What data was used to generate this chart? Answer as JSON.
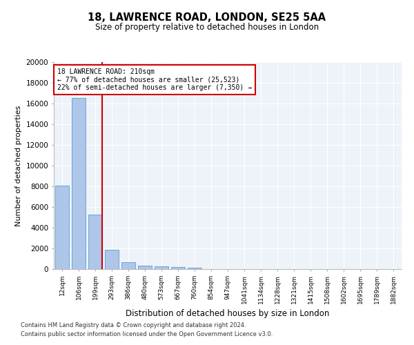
{
  "title1": "18, LAWRENCE ROAD, LONDON, SE25 5AA",
  "title2": "Size of property relative to detached houses in London",
  "xlabel": "Distribution of detached houses by size in London",
  "ylabel": "Number of detached properties",
  "categories": [
    "12sqm",
    "106sqm",
    "199sqm",
    "293sqm",
    "386sqm",
    "480sqm",
    "573sqm",
    "667sqm",
    "760sqm",
    "854sqm",
    "947sqm",
    "1041sqm",
    "1134sqm",
    "1228sqm",
    "1321sqm",
    "1415sqm",
    "1508sqm",
    "1602sqm",
    "1695sqm",
    "1789sqm",
    "1882sqm"
  ],
  "values": [
    8100,
    16500,
    5300,
    1850,
    700,
    360,
    270,
    210,
    160,
    0,
    0,
    0,
    0,
    0,
    0,
    0,
    0,
    0,
    0,
    0,
    0
  ],
  "bar_color": "#aec6e8",
  "bar_edge_color": "#5b9bd5",
  "bg_color": "#eef2f9",
  "grid_color": "#ffffff",
  "annotation_text": "18 LAWRENCE ROAD: 210sqm\n← 77% of detached houses are smaller (25,523)\n22% of semi-detached houses are larger (7,350) →",
  "annotation_box_color": "#cc0000",
  "vline_color": "#cc0000",
  "ylim": [
    0,
    20000
  ],
  "yticks": [
    0,
    2000,
    4000,
    6000,
    8000,
    10000,
    12000,
    14000,
    16000,
    18000,
    20000
  ],
  "footer1": "Contains HM Land Registry data © Crown copyright and database right 2024.",
  "footer2": "Contains public sector information licensed under the Open Government Licence v3.0."
}
